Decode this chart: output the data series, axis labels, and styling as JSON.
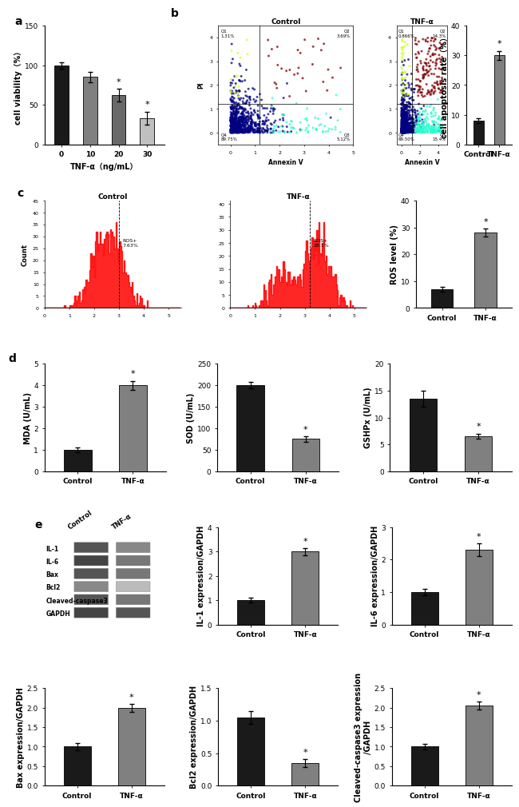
{
  "panel_a": {
    "categories": [
      "0",
      "10",
      "20",
      "30"
    ],
    "values": [
      100,
      85,
      62,
      33
    ],
    "errors": [
      4,
      7,
      8,
      8
    ],
    "colors": [
      "#1a1a1a",
      "#808080",
      "#696969",
      "#c0c0c0"
    ],
    "ylabel": "cell viability（%）",
    "xlabel": "TNF-α（ng/mL）",
    "ylim": [
      0,
      150
    ],
    "yticks": [
      0,
      50,
      100,
      150
    ],
    "sig": [
      false,
      false,
      true,
      true
    ],
    "label": "a"
  },
  "panel_b_bar": {
    "categories": [
      "Control",
      "TNF-α"
    ],
    "values": [
      8,
      30
    ],
    "errors": [
      0.8,
      1.5
    ],
    "colors": [
      "#1a1a1a",
      "#808080"
    ],
    "ylabel": "cell apoptosis rate（%）",
    "ylim": [
      0,
      40
    ],
    "yticks": [
      0,
      10,
      20,
      30,
      40
    ],
    "sig": [
      false,
      true
    ]
  },
  "panel_c_bar": {
    "categories": [
      "Control",
      "TNF-α"
    ],
    "values": [
      7,
      28
    ],
    "errors": [
      1.0,
      1.5
    ],
    "colors": [
      "#1a1a1a",
      "#808080"
    ],
    "ylabel": "ROS level (%)",
    "ylim": [
      0,
      40
    ],
    "yticks": [
      0,
      10,
      20,
      30,
      40
    ],
    "sig": [
      false,
      true
    ]
  },
  "panel_c_hist": [
    {
      "title": "Control",
      "pct_val": 7.63,
      "pct_str": "7.63%",
      "seed": 10,
      "show_ylabel": true
    },
    {
      "title": "TNF-α",
      "pct_val": 28.1,
      "pct_str": "28.1%",
      "seed": 20,
      "show_ylabel": false
    }
  ],
  "panel_d1": {
    "categories": [
      "Control",
      "TNF-α"
    ],
    "values": [
      1.0,
      4.0
    ],
    "errors": [
      0.1,
      0.2
    ],
    "colors": [
      "#1a1a1a",
      "#808080"
    ],
    "ylabel": "MDA (U/mL)",
    "ylim": [
      0,
      5
    ],
    "yticks": [
      0,
      1,
      2,
      3,
      4,
      5
    ],
    "sig": [
      false,
      true
    ],
    "label": "d"
  },
  "panel_d2": {
    "categories": [
      "Control",
      "TNF-α"
    ],
    "values": [
      200,
      75
    ],
    "errors": [
      8,
      6
    ],
    "colors": [
      "#1a1a1a",
      "#808080"
    ],
    "ylabel": "SOD (U/mL)",
    "ylim": [
      0,
      250
    ],
    "yticks": [
      0,
      50,
      100,
      150,
      200,
      250
    ],
    "sig": [
      false,
      true
    ]
  },
  "panel_d3": {
    "categories": [
      "Control",
      "TNF-α"
    ],
    "values": [
      13.5,
      6.5
    ],
    "errors": [
      1.5,
      0.5
    ],
    "colors": [
      "#1a1a1a",
      "#808080"
    ],
    "ylabel": "GSHPx (U/mL)",
    "ylim": [
      0,
      20
    ],
    "yticks": [
      0,
      5,
      10,
      15,
      20
    ],
    "sig": [
      false,
      true
    ]
  },
  "panel_e_il1": {
    "categories": [
      "Control",
      "TNF-α"
    ],
    "values": [
      1.0,
      3.0
    ],
    "errors": [
      0.1,
      0.15
    ],
    "colors": [
      "#1a1a1a",
      "#808080"
    ],
    "ylabel": "IL-1 expression/GAPDH",
    "ylim": [
      0,
      4
    ],
    "yticks": [
      0,
      1,
      2,
      3,
      4
    ],
    "sig": [
      false,
      true
    ]
  },
  "panel_e_il6": {
    "categories": [
      "Control",
      "TNF-α"
    ],
    "values": [
      1.0,
      2.3
    ],
    "errors": [
      0.1,
      0.2
    ],
    "colors": [
      "#1a1a1a",
      "#808080"
    ],
    "ylabel": "IL-6 expression/GAPDH",
    "ylim": [
      0,
      3
    ],
    "yticks": [
      0,
      1,
      2,
      3
    ],
    "sig": [
      false,
      true
    ]
  },
  "panel_e_bax": {
    "categories": [
      "Control",
      "TNF-α"
    ],
    "values": [
      1.0,
      2.0
    ],
    "errors": [
      0.1,
      0.1
    ],
    "colors": [
      "#1a1a1a",
      "#808080"
    ],
    "ylabel": "Bax expression/GAPDH",
    "ylim": [
      0,
      2.5
    ],
    "yticks": [
      0.0,
      0.5,
      1.0,
      1.5,
      2.0,
      2.5
    ],
    "sig": [
      false,
      true
    ]
  },
  "panel_e_bcl2": {
    "categories": [
      "Control",
      "TNF-α"
    ],
    "values": [
      1.05,
      0.35
    ],
    "errors": [
      0.1,
      0.06
    ],
    "colors": [
      "#1a1a1a",
      "#808080"
    ],
    "ylabel": "Bcl2 expression/GAPDH",
    "ylim": [
      0,
      1.5
    ],
    "yticks": [
      0.0,
      0.5,
      1.0,
      1.5
    ],
    "sig": [
      false,
      true
    ]
  },
  "panel_e_casp3": {
    "categories": [
      "Control",
      "TNF-α"
    ],
    "values": [
      1.0,
      2.05
    ],
    "errors": [
      0.08,
      0.1
    ],
    "colors": [
      "#1a1a1a",
      "#808080"
    ],
    "ylabel": "Cleaved-caspase3 expression\n/GAPDH",
    "ylim": [
      0,
      2.5
    ],
    "yticks": [
      0.0,
      0.5,
      1.0,
      1.5,
      2.0,
      2.5
    ],
    "sig": [
      false,
      true
    ]
  },
  "wb_labels": [
    "IL-1",
    "IL-6",
    "Bax",
    "Bcl2",
    "Cleaved-caspase3",
    "GAPDH"
  ],
  "wb_col_labels": [
    "Control",
    "TNF-α"
  ],
  "wb_band_colors_ctrl": [
    "#555555",
    "#444444",
    "#555555",
    "#888888",
    "#555555",
    "#444444"
  ],
  "wb_band_colors_tnf": [
    "#888888",
    "#777777",
    "#777777",
    "#bbbbbb",
    "#777777",
    "#555555"
  ],
  "background_color": "#ffffff",
  "bar_width": 0.5,
  "fontsize_label": 7,
  "fontsize_tick": 6.5,
  "fontsize_panel": 10
}
